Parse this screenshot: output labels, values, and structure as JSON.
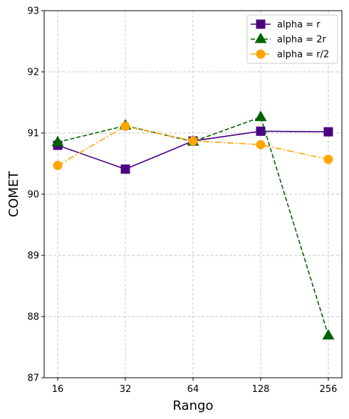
{
  "chart_data": {
    "type": "line",
    "categories": [
      "16",
      "32",
      "64",
      "128",
      "256"
    ],
    "xlabel": "Rango",
    "ylabel": "COMET",
    "ylim": [
      87,
      93
    ],
    "yticks": [
      87,
      88,
      89,
      90,
      91,
      92,
      93
    ],
    "grid": true,
    "legend_placement": "top-right",
    "series": [
      {
        "name": "alpha = r",
        "values": [
          90.8,
          90.41,
          90.87,
          91.03,
          91.02
        ],
        "color": "#4b0082",
        "marker": "square",
        "dash": "solid"
      },
      {
        "name": "alpha = 2r",
        "values": [
          90.85,
          91.12,
          90.86,
          91.26,
          87.69
        ],
        "color": "#006400",
        "marker": "triangle",
        "dash": "dashed"
      },
      {
        "name": "alpha = r/2",
        "values": [
          90.47,
          91.11,
          90.87,
          90.81,
          90.57
        ],
        "color": "#ffa500",
        "marker": "circle",
        "dash": "dashdot"
      }
    ]
  }
}
